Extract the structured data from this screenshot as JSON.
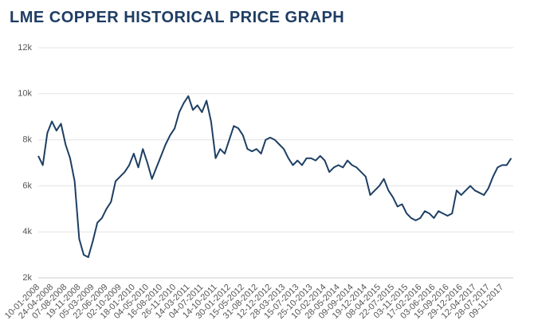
{
  "chart_data": {
    "type": "line",
    "title": "LME COPPER HISTORICAL PRICE GRAPH",
    "categories": [
      "10-01-2008",
      null,
      null,
      "24-04-2008",
      null,
      null,
      "07-08-2008",
      null,
      null,
      "19-11-2008",
      null,
      null,
      "05-03-2009",
      null,
      null,
      "22-06-2009",
      null,
      null,
      "02-10-2009",
      null,
      null,
      "18-01-2010",
      null,
      null,
      "04-05-2010",
      null,
      null,
      "16-08-2010",
      null,
      null,
      "26-11-2010",
      null,
      null,
      "14-03-2011",
      null,
      null,
      "04-07-2011",
      null,
      null,
      "14-10-2011",
      null,
      null,
      "30-01-2012",
      null,
      null,
      "15-05-2012",
      null,
      null,
      "31-08-2012",
      null,
      null,
      "12-12-2012",
      null,
      null,
      "28-03-2013",
      null,
      null,
      "15-07-2013",
      null,
      null,
      "25-10-2013",
      null,
      null,
      "10-02-2014",
      null,
      null,
      "28-05-2014",
      null,
      null,
      "09-09-2014",
      null,
      null,
      "19-12-2014",
      null,
      null,
      "08-04-2015",
      null,
      null,
      "22-07-2015",
      null,
      null,
      "03-11-2015",
      null,
      null,
      "17-02-2016",
      null,
      null,
      "03-06-2016",
      null,
      null,
      "15-09-2016",
      null,
      null,
      "29-12-2016",
      null,
      null,
      "12-04-2017",
      null,
      null,
      "28-07-2017",
      null,
      null,
      "09-11-2017",
      null,
      null
    ],
    "series": [
      {
        "color": "#1d3f63",
        "values": [
          7300,
          6900,
          8300,
          8800,
          8400,
          8700,
          7800,
          7200,
          6200,
          3700,
          3000,
          2900,
          3600,
          4400,
          4600,
          5000,
          5300,
          6200,
          6400,
          6600,
          6900,
          7400,
          6800,
          7600,
          7000,
          6300,
          6800,
          7300,
          7800,
          8200,
          8500,
          9200,
          9600,
          9900,
          9300,
          9500,
          9200,
          9700,
          8800,
          7200,
          7600,
          7400,
          8000,
          8600,
          8500,
          8200,
          7600,
          7500,
          7600,
          7400,
          8000,
          8100,
          8000,
          7800,
          7600,
          7200,
          6900,
          7100,
          6900,
          7200,
          7200,
          7100,
          7300,
          7100,
          6600,
          6800,
          6900,
          6800,
          7100,
          6900,
          6800,
          6600,
          6400,
          5600,
          5800,
          6000,
          6300,
          5800,
          5500,
          5100,
          5200,
          4800,
          4600,
          4500,
          4600,
          4900,
          4800,
          4600,
          4900,
          4800,
          4700,
          4800,
          5800,
          5600,
          5800,
          6000,
          5800,
          5700,
          5600,
          5900,
          6400,
          6800,
          6900,
          6900,
          7200
        ]
      }
    ],
    "ylim": [
      2000,
      12000
    ],
    "yticks": [
      {
        "value": 2000,
        "label": "2k"
      },
      {
        "value": 4000,
        "label": "4k"
      },
      {
        "value": 6000,
        "label": "6k"
      },
      {
        "value": 8000,
        "label": "8k"
      },
      {
        "value": 10000,
        "label": "10k"
      },
      {
        "value": 12000,
        "label": "12k"
      }
    ],
    "grid": true
  }
}
